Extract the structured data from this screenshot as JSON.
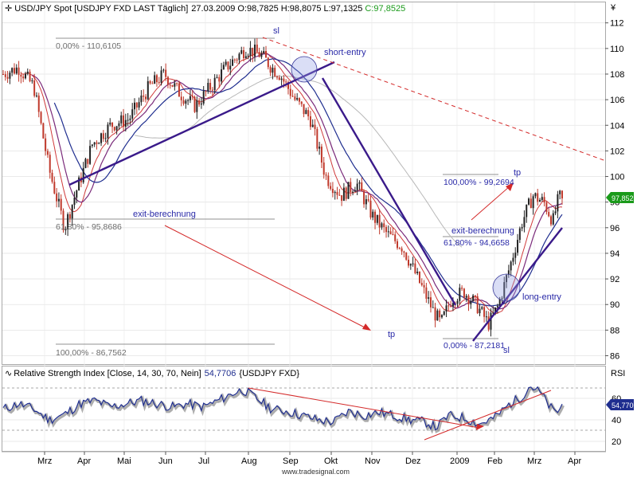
{
  "colors": {
    "bull": "#222222",
    "bear": "#c0392b",
    "ma_blue": "#1f2e8f",
    "ma_purple": "#7a2a7a",
    "ma_red": "#d03a3a",
    "ma_grey": "#b8b8b8",
    "trend": "#3a1a8a",
    "red_line": "#d42a2a",
    "fib": "#6e6e6e",
    "annot": "#2a2aa8",
    "rsi": "#1f2e8f",
    "rsi_shadow": "#8a8a8a",
    "last_value": "#1a9a1a"
  },
  "header": {
    "symbol": "USD/JPY Spot [USDJPY FXD LAST Täglich]",
    "date": "27.03.2009",
    "open": "O:98,7825",
    "high": "H:98,8075",
    "low": "L:97,1325",
    "close": "C:97,8525"
  },
  "rsi_header": {
    "title": "Relative Strength Index [Close, 14, 30, 70, Nein]",
    "value": "54,7706",
    "symbol": "{USDJPY FXD}"
  },
  "currency_symbol": "¥",
  "rsi_axis_label": "RSI",
  "footer": "www.tradesignal.com",
  "annotations": {
    "sl_top": "sl",
    "short_entry": "short-entry",
    "tp_top": "tp",
    "exit_top": "exit-berechnung",
    "exit_left": "exit-berechnung",
    "tp_bottom": "tp",
    "long_entry": "long-entry",
    "sl_bottom": "sl"
  },
  "fib_labels": {
    "f1": "0,00% - 110,6105",
    "f2": "61,80% - 95,8686",
    "f3": "100,00% - 86,7562",
    "f4": "100,00% - 99,2694",
    "f5": "61,80% - 94,6658",
    "f6": "0,00% - 87,2181"
  },
  "chart_data": [
    {
      "type": "candlestick",
      "title": "USD/JPY Spot [USDJPY FXD LAST Täglich]",
      "ylabel": "¥",
      "ylim": [
        85.5,
        113
      ],
      "y_ticks": [
        86,
        88,
        90,
        92,
        94,
        96,
        98,
        100,
        102,
        104,
        106,
        108,
        110,
        112
      ],
      "x_ticks": [
        "Mrz",
        "Apr",
        "Mai",
        "Jun",
        "Jul",
        "Aug",
        "Sep",
        "Okt",
        "Nov",
        "Dez",
        "2009",
        "Feb",
        "Mrz",
        "Apr"
      ],
      "close_path": [
        [
          0,
          108.0
        ],
        [
          10,
          108.5
        ],
        [
          20,
          107.0
        ],
        [
          30,
          100.5
        ],
        [
          40,
          96.0
        ],
        [
          48,
          99.0
        ],
        [
          58,
          102.5
        ],
        [
          70,
          104.0
        ],
        [
          82,
          104.5
        ],
        [
          95,
          107.0
        ],
        [
          105,
          108.0
        ],
        [
          115,
          106.5
        ],
        [
          125,
          105.5
        ],
        [
          135,
          107.0
        ],
        [
          145,
          108.5
        ],
        [
          158,
          110.0
        ],
        [
          168,
          109.5
        ],
        [
          175,
          108.5
        ],
        [
          180,
          108.0
        ],
        [
          185,
          107.0
        ],
        [
          190,
          106.0
        ],
        [
          200,
          104.5
        ],
        [
          210,
          100.0
        ],
        [
          220,
          98.5
        ],
        [
          230,
          99.5
        ],
        [
          240,
          97.0
        ],
        [
          250,
          95.5
        ],
        [
          260,
          94.5
        ],
        [
          270,
          92.0
        ],
        [
          280,
          89.5
        ],
        [
          285,
          88.5
        ],
        [
          292,
          90.5
        ],
        [
          300,
          91.0
        ],
        [
          308,
          90.0
        ],
        [
          316,
          88.5
        ],
        [
          322,
          89.8
        ],
        [
          330,
          93.0
        ],
        [
          338,
          96.5
        ],
        [
          345,
          98.5
        ],
        [
          352,
          98.0
        ],
        [
          358,
          96.5
        ],
        [
          362,
          98.5
        ],
        [
          365,
          97.85
        ]
      ],
      "last_close": "97,8525",
      "fib_levels_left": [
        110.6105,
        95.8686,
        86.7562
      ],
      "fib_levels_right": [
        99.2694,
        94.6658,
        87.2181
      ]
    },
    {
      "type": "line",
      "title": "Relative Strength Index [Close, 14, 30, 70, Nein]",
      "ylabel": "RSI",
      "ylim": [
        12,
        77
      ],
      "y_ticks": [
        20,
        40,
        60
      ],
      "levels": [
        30,
        70
      ],
      "path": [
        [
          0,
          50
        ],
        [
          10,
          55
        ],
        [
          20,
          50
        ],
        [
          30,
          40
        ],
        [
          40,
          45
        ],
        [
          50,
          55
        ],
        [
          60,
          58
        ],
        [
          70,
          52
        ],
        [
          80,
          55
        ],
        [
          90,
          58
        ],
        [
          100,
          55
        ],
        [
          110,
          52
        ],
        [
          120,
          55
        ],
        [
          130,
          52
        ],
        [
          140,
          58
        ],
        [
          150,
          65
        ],
        [
          156,
          68
        ],
        [
          165,
          60
        ],
        [
          175,
          50
        ],
        [
          185,
          48
        ],
        [
          195,
          44
        ],
        [
          205,
          40
        ],
        [
          215,
          38
        ],
        [
          225,
          48
        ],
        [
          235,
          44
        ],
        [
          245,
          47
        ],
        [
          255,
          44
        ],
        [
          265,
          40
        ],
        [
          275,
          38
        ],
        [
          282,
          33
        ],
        [
          290,
          44
        ],
        [
          300,
          42
        ],
        [
          310,
          36
        ],
        [
          320,
          42
        ],
        [
          330,
          55
        ],
        [
          338,
          62
        ],
        [
          343,
          72
        ],
        [
          350,
          65
        ],
        [
          356,
          52
        ],
        [
          360,
          46
        ],
        [
          365,
          56
        ]
      ],
      "last_value": "54,7706"
    }
  ]
}
